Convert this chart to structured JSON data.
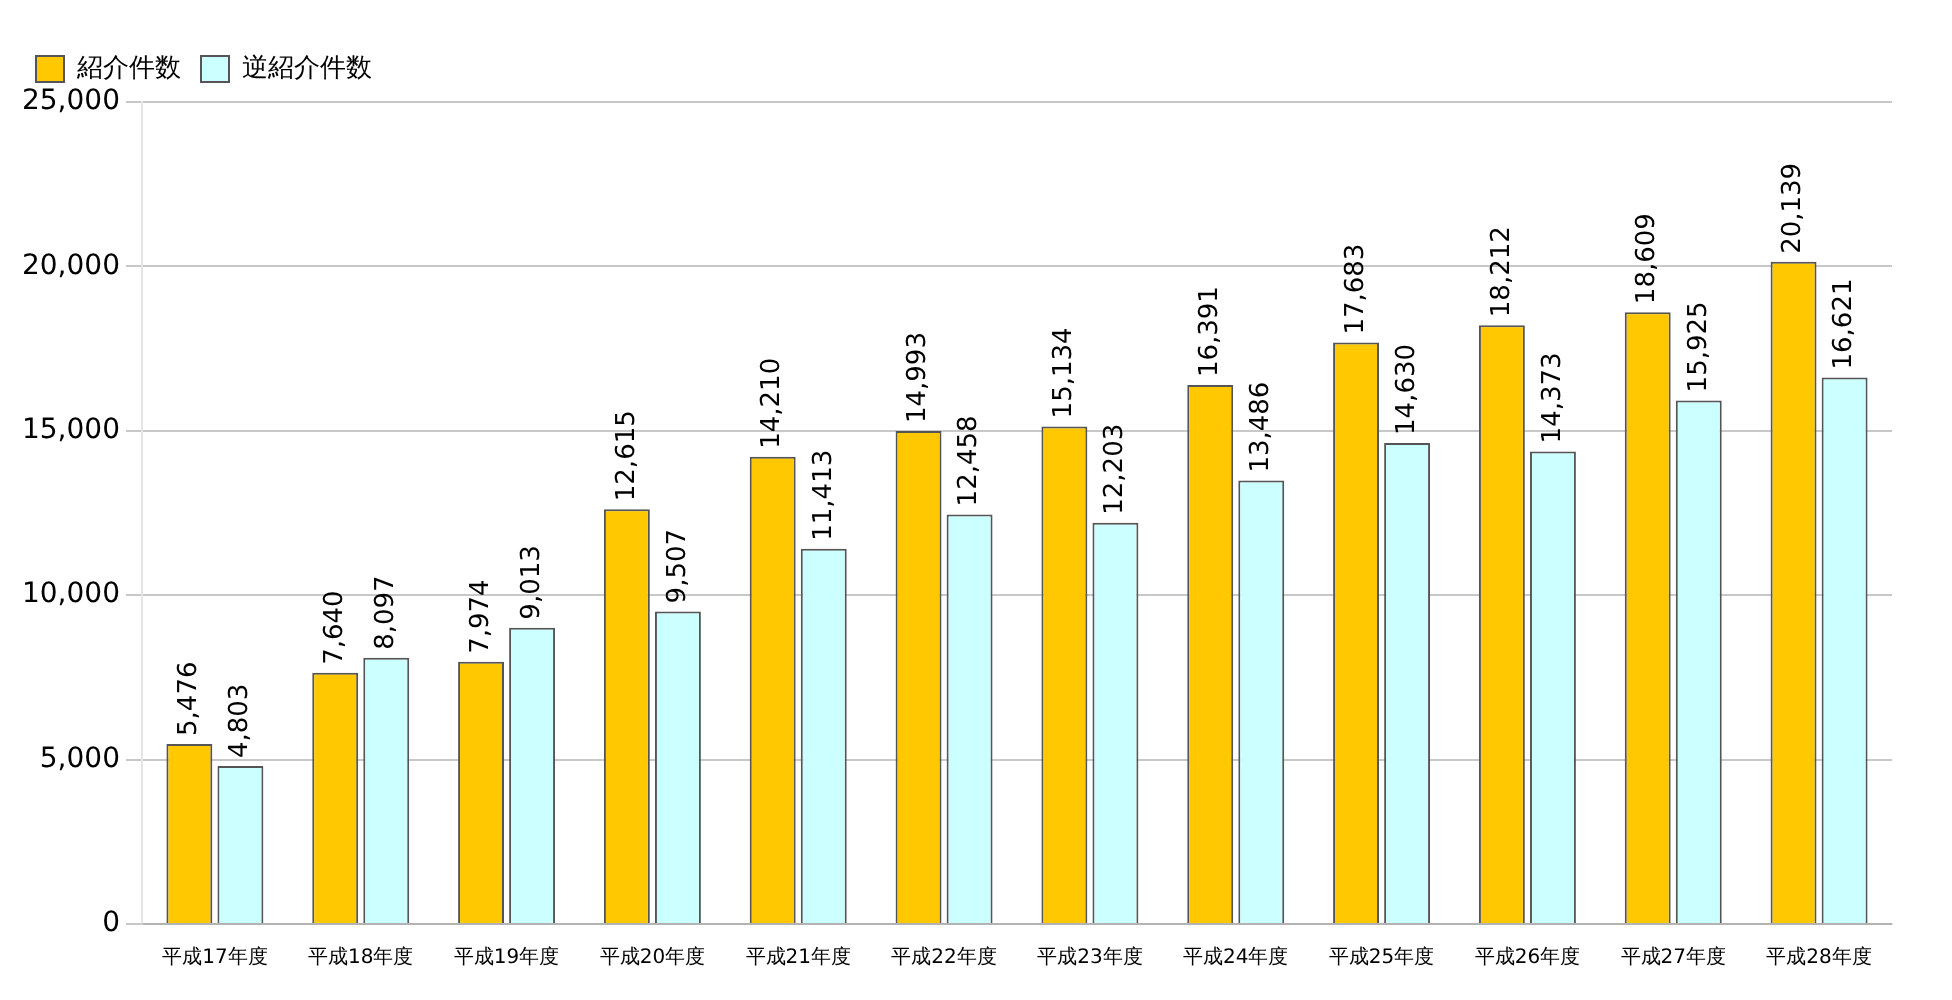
{
  "chart_data": {
    "type": "bar",
    "categories": [
      "平成17年度",
      "平成18年度",
      "平成19年度",
      "平成20年度",
      "平成21年度",
      "平成22年度",
      "平成23年度",
      "平成24年度",
      "平成25年度",
      "平成26年度",
      "平成27年度",
      "平成28年度"
    ],
    "series": [
      {
        "name": "紹介件数",
        "color": "#ffc800",
        "values": [
          5476,
          7640,
          7974,
          12615,
          14210,
          14993,
          15134,
          16391,
          17683,
          18212,
          18609,
          20139
        ],
        "value_labels": [
          "5,476",
          "7,640",
          "7,974",
          "12,615",
          "14,210",
          "14,993",
          "15,134",
          "16,391",
          "17,683",
          "18,212",
          "18,609",
          "20,139"
        ]
      },
      {
        "name": "逆紹介件数",
        "color": "#ccffff",
        "values": [
          4803,
          8097,
          9013,
          9507,
          11413,
          12458,
          12203,
          13486,
          14630,
          14373,
          15925,
          16621
        ],
        "value_labels": [
          "4,803",
          "8,097",
          "9,013",
          "9,507",
          "11,413",
          "12,458",
          "12,203",
          "13,486",
          "14,630",
          "14,373",
          "15,925",
          "16,621"
        ]
      }
    ],
    "ylim": [
      0,
      25000
    ],
    "yticks": [
      {
        "value": 0,
        "label": "0"
      },
      {
        "value": 5000,
        "label": "5,000"
      },
      {
        "value": 10000,
        "label": "10,000"
      },
      {
        "value": 15000,
        "label": "15,000"
      },
      {
        "value": 20000,
        "label": "20,000"
      },
      {
        "value": 25000,
        "label": "25,000"
      }
    ],
    "grid": "y",
    "legend": "top left"
  }
}
